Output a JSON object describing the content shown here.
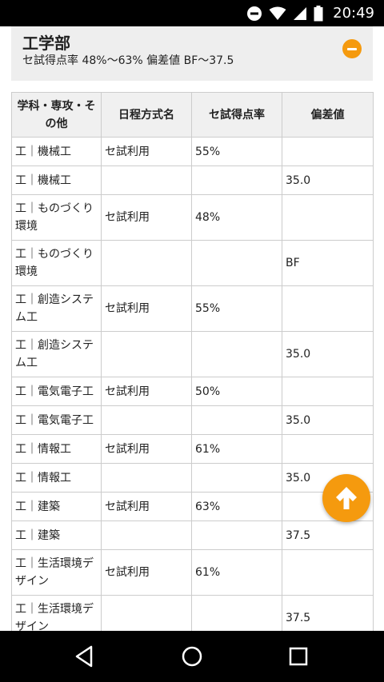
{
  "status_bar": {
    "time": "20:49",
    "icons": [
      "do-not-disturb-icon",
      "wifi-icon",
      "cell-signal-icon",
      "battery-icon"
    ]
  },
  "faculty": {
    "title": "工学部",
    "summary": "セ試得点率 48%〜63% 偏差値 BF〜37.5",
    "collapse_icon": "minus-circle-icon",
    "accent_color": "#f59a0e"
  },
  "table": {
    "headers": [
      "学科・専攻・その他",
      "日程方式名",
      "セ試得点率",
      "偏差値"
    ],
    "rows": [
      {
        "dept": "工｜機械工",
        "schedule": "セ試利用",
        "rate": "55%",
        "deviation": ""
      },
      {
        "dept": "工｜機械工",
        "schedule": "",
        "rate": "",
        "deviation": "35.0"
      },
      {
        "dept": "工｜ものづくり環境",
        "schedule": "セ試利用",
        "rate": "48%",
        "deviation": ""
      },
      {
        "dept": "工｜ものづくり環境",
        "schedule": "",
        "rate": "",
        "deviation": "BF"
      },
      {
        "dept": "工｜創造システム工",
        "schedule": "セ試利用",
        "rate": "55%",
        "deviation": ""
      },
      {
        "dept": "工｜創造システム工",
        "schedule": "",
        "rate": "",
        "deviation": "35.0"
      },
      {
        "dept": "工｜電気電子工",
        "schedule": "セ試利用",
        "rate": "50%",
        "deviation": ""
      },
      {
        "dept": "工｜電気電子工",
        "schedule": "",
        "rate": "",
        "deviation": "35.0"
      },
      {
        "dept": "工｜情報工",
        "schedule": "セ試利用",
        "rate": "61%",
        "deviation": ""
      },
      {
        "dept": "工｜情報工",
        "schedule": "",
        "rate": "",
        "deviation": "35.0"
      },
      {
        "dept": "工｜建築",
        "schedule": "セ試利用",
        "rate": "63%",
        "deviation": ""
      },
      {
        "dept": "工｜建築",
        "schedule": "",
        "rate": "",
        "deviation": "37.5"
      },
      {
        "dept": "工｜生活環境デザイン",
        "schedule": "セ試利用",
        "rate": "61%",
        "deviation": ""
      },
      {
        "dept": "工｜生活環境デザイン",
        "schedule": "",
        "rate": "",
        "deviation": "37.5"
      }
    ]
  },
  "scroll_top": {
    "icon": "arrow-up-icon"
  },
  "nav_bar": {
    "icons": [
      "back-icon",
      "home-icon",
      "recents-icon"
    ]
  }
}
